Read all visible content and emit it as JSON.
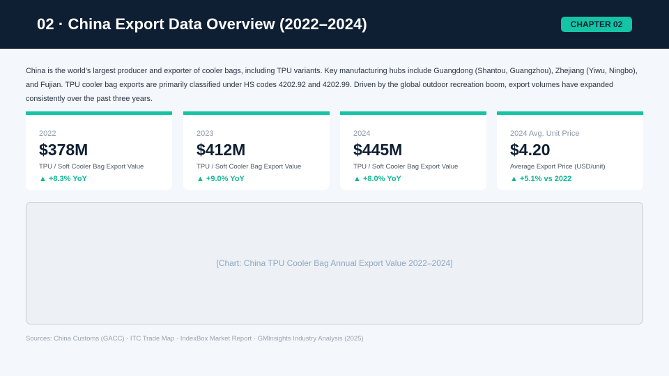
{
  "header": {
    "title": "02 · China Export Data Overview (2022–2024)",
    "badge": "CHAPTER 02"
  },
  "intro": "China is the world's largest producer and exporter of cooler bags, including TPU variants. Key manufacturing hubs include Guangdong (Shantou, Guangzhou), Zhejiang (Yiwu, Ningbo), and Fujian. TPU cooler bag exports are primarily classified under HS codes 4202.92 and 4202.99. Driven by the global outdoor recreation boom, export volumes have expanded consistently over the past three years.",
  "cards": [
    {
      "label": "2022",
      "value": "$378M",
      "desc": "TPU / Soft Cooler Bag Export Value",
      "change": "▲ +8.3% YoY"
    },
    {
      "label": "2023",
      "value": "$412M",
      "desc": "TPU / Soft Cooler Bag Export Value",
      "change": "▲ +9.0% YoY"
    },
    {
      "label": "2024",
      "value": "$445M",
      "desc": "TPU / Soft Cooler Bag Export Value",
      "change": "▲ +8.0% YoY"
    },
    {
      "label": "2024 Avg. Unit Price",
      "value": "$4.20",
      "desc": "Average Export Price (USD/unit)",
      "change": "▲ +5.1% vs 2022"
    }
  ],
  "chart_placeholder": "[Chart: China TPU Cooler Bag Annual Export Value 2022–2024]",
  "sources": "Sources: China Customs (GACC) · ITC Trade Map · IndexBox Market Report · GMInsights Industry Analysis (2025)",
  "colors": {
    "header_bg": "#0f1f33",
    "accent": "#14c4a4",
    "positive": "#10b894"
  }
}
